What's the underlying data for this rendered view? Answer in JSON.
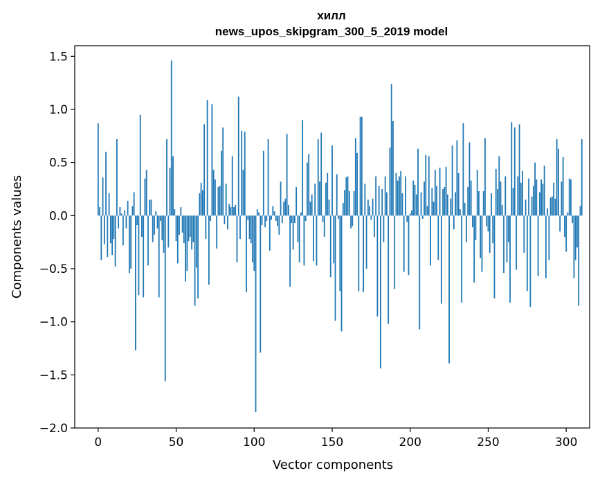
{
  "chart_data": {
    "type": "bar",
    "title": "хилл",
    "subtitle": "news_upos_skipgram_300_5_2019 model",
    "xlabel": "Vector components",
    "ylabel": "Components values",
    "xlim": [
      -15,
      315
    ],
    "ylim": [
      -2.0,
      1.6
    ],
    "xticks": [
      0,
      50,
      100,
      150,
      200,
      250,
      300
    ],
    "yticks": [
      -2.0,
      -1.5,
      -1.0,
      -0.5,
      0.0,
      0.5,
      1.0,
      1.5
    ],
    "xtick_labels": [
      "0",
      "50",
      "100",
      "150",
      "200",
      "250",
      "300"
    ],
    "ytick_labels": [
      "−2.0",
      "−1.5",
      "−1.0",
      "−0.5",
      "0.0",
      "0.5",
      "1.0",
      "1.5"
    ],
    "grid": false,
    "bar_color": "#1f77b4",
    "values": [
      0.87,
      0.08,
      -0.42,
      0.36,
      -0.27,
      0.6,
      -0.39,
      0.21,
      -0.26,
      -0.37,
      -0.22,
      -0.48,
      0.72,
      -0.12,
      0.08,
      0.02,
      -0.28,
      0.05,
      -0.12,
      0.14,
      -0.54,
      -0.5,
      0.09,
      0.22,
      -1.27,
      -0.09,
      -0.75,
      0.95,
      -0.2,
      -0.77,
      0.35,
      0.43,
      -0.47,
      0.15,
      0.15,
      -0.25,
      -0.18,
      0.04,
      -0.12,
      -0.77,
      -0.05,
      -0.23,
      -0.35,
      -1.56,
      0.72,
      -0.3,
      0.45,
      1.46,
      0.56,
      0.06,
      -0.24,
      -0.45,
      -0.18,
      0.08,
      -0.16,
      -0.26,
      -0.62,
      -0.52,
      -0.24,
      -0.2,
      -0.32,
      -0.25,
      -0.85,
      -0.49,
      -0.78,
      0.21,
      0.31,
      0.24,
      0.86,
      -0.22,
      1.09,
      -0.65,
      -0.05,
      1.05,
      0.43,
      0.34,
      -0.31,
      0.27,
      0.28,
      0.61,
      0.83,
      -0.08,
      0.3,
      -0.13,
      0.11,
      0.08,
      0.56,
      0.08,
      0.1,
      -0.44,
      1.12,
      -0.22,
      0.8,
      0.43,
      0.79,
      -0.72,
      -0.04,
      -0.22,
      -0.26,
      -0.44,
      -0.52,
      -1.85,
      0.06,
      0.03,
      -1.29,
      -0.09,
      0.61,
      -0.11,
      -0.05,
      0.72,
      -0.33,
      -0.04,
      0.09,
      0.04,
      -0.05,
      -0.1,
      -0.18,
      0.32,
      -0.07,
      0.13,
      0.16,
      0.77,
      0.1,
      -0.67,
      -0.07,
      -0.32,
      -0.07,
      0.27,
      -0.25,
      -0.44,
      0.03,
      0.9,
      -0.47,
      -0.05,
      0.5,
      0.58,
      0.13,
      0.2,
      -0.43,
      0.3,
      -0.47,
      0.72,
      0.32,
      0.78,
      -0.06,
      -0.2,
      0.31,
      0.4,
      0.15,
      -0.58,
      0.66,
      -0.45,
      -0.99,
      0.39,
      -0.03,
      -0.71,
      -1.09,
      0.12,
      0.24,
      0.36,
      0.37,
      0.23,
      -0.12,
      -0.1,
      0.23,
      0.73,
      0.59,
      -0.71,
      0.93,
      0.93,
      -0.72,
      0.3,
      -0.5,
      0.15,
      0.09,
      -0.04,
      0.16,
      -0.2,
      0.37,
      -0.95,
      0.28,
      -1.44,
      0.25,
      -0.25,
      0.37,
      0.22,
      -1.02,
      0.64,
      1.24,
      0.89,
      -0.69,
      0.4,
      0.33,
      0.37,
      0.42,
      0.21,
      -0.53,
      0.37,
      -0.06,
      -0.56,
      0.02,
      0.05,
      0.33,
      0.29,
      0.2,
      0.63,
      -1.07,
      0.22,
      -0.03,
      0.32,
      0.57,
      0.09,
      0.56,
      -0.47,
      0.26,
      0.13,
      0.43,
      0.28,
      -0.42,
      0.45,
      -0.83,
      0.25,
      0.27,
      0.46,
      0.2,
      -1.39,
      0.16,
      0.66,
      -0.13,
      0.22,
      0.71,
      0.4,
      0.06,
      -0.82,
      0.87,
      0.12,
      -0.25,
      0.27,
      0.69,
      0.33,
      -0.11,
      -0.63,
      -0.23,
      0.43,
      0.23,
      -0.4,
      -0.53,
      0.23,
      0.73,
      -0.1,
      -0.15,
      -0.35,
      0.21,
      -0.26,
      -0.78,
      0.44,
      0.25,
      0.56,
      0.32,
      0.1,
      -0.54,
      0.37,
      -0.44,
      -0.25,
      -0.82,
      0.88,
      0.26,
      0.83,
      -0.51,
      0.37,
      0.86,
      0.31,
      0.42,
      -0.35,
      0.15,
      -0.71,
      0.35,
      -0.86,
      0.18,
      0.28,
      0.5,
      0.34,
      -0.57,
      0.22,
      0.34,
      0.3,
      0.47,
      -0.59,
      0.07,
      -0.42,
      0.17,
      0.18,
      0.31,
      0.16,
      0.72,
      0.63,
      -0.15,
      0.32,
      0.55,
      -0.2,
      -0.34,
      0.03,
      0.35,
      0.34,
      -0.07,
      -0.59,
      -0.42,
      -0.3,
      -0.85,
      0.09,
      0.72
    ]
  }
}
